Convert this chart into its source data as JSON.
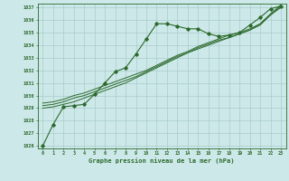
{
  "hours": [
    0,
    1,
    2,
    3,
    4,
    5,
    6,
    7,
    8,
    9,
    10,
    11,
    12,
    13,
    14,
    15,
    16,
    17,
    18,
    19,
    20,
    21,
    22,
    23
  ],
  "main_series": [
    1026.0,
    1027.7,
    1029.1,
    1029.2,
    1029.3,
    1030.1,
    1031.0,
    1031.9,
    1032.2,
    1033.3,
    1034.5,
    1035.7,
    1035.7,
    1035.5,
    1035.3,
    1035.3,
    1034.9,
    1034.7,
    1034.8,
    1035.0,
    1035.6,
    1036.2,
    1036.9,
    1037.1
  ],
  "line2": [
    1029.0,
    1029.1,
    1029.3,
    1029.5,
    1029.8,
    1030.1,
    1030.4,
    1030.7,
    1031.0,
    1031.4,
    1031.8,
    1032.2,
    1032.6,
    1033.0,
    1033.4,
    1033.7,
    1034.0,
    1034.3,
    1034.6,
    1034.9,
    1035.2,
    1035.7,
    1036.4,
    1037.1
  ],
  "line3": [
    1029.2,
    1029.3,
    1029.5,
    1029.8,
    1030.0,
    1030.3,
    1030.6,
    1030.9,
    1031.2,
    1031.5,
    1031.9,
    1032.3,
    1032.7,
    1033.1,
    1033.4,
    1033.8,
    1034.1,
    1034.4,
    1034.6,
    1034.9,
    1035.2,
    1035.6,
    1036.4,
    1037.0
  ],
  "line4": [
    1029.4,
    1029.5,
    1029.7,
    1030.0,
    1030.2,
    1030.5,
    1030.8,
    1031.1,
    1031.4,
    1031.7,
    1032.0,
    1032.4,
    1032.8,
    1033.2,
    1033.5,
    1033.9,
    1034.2,
    1034.5,
    1034.8,
    1035.0,
    1035.3,
    1035.7,
    1036.5,
    1037.2
  ],
  "line_color": "#2d6a2d",
  "bg_color": "#cce8e8",
  "grid_color": "#aacccc",
  "xlabel": "Graphe pression niveau de la mer (hPa)",
  "ylim": [
    1026,
    1037
  ],
  "xlim": [
    0,
    23
  ],
  "yticks": [
    1026,
    1027,
    1028,
    1029,
    1030,
    1031,
    1032,
    1033,
    1034,
    1035,
    1036,
    1037
  ],
  "xticks": [
    0,
    1,
    2,
    3,
    4,
    5,
    6,
    7,
    8,
    9,
    10,
    11,
    12,
    13,
    14,
    15,
    16,
    17,
    18,
    19,
    20,
    21,
    22,
    23
  ]
}
